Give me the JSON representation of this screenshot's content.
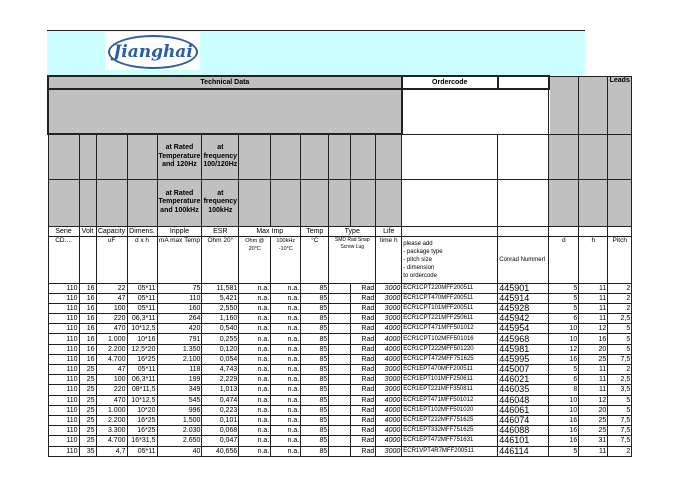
{
  "logo": {
    "text": "Jianghai",
    "color": "#2a5fa8"
  },
  "header": {
    "technical_data": "Technical Data",
    "ordercode": "Ordercode",
    "leads": "Leads",
    "ripple_note_1": "at Rated Temperature and 120Hz",
    "esr_note_1": "at frequency 100/120Hz",
    "ripple_note_2": "at Rated Temperature and 100kHz",
    "esr_note_2": "at frequency 100kHz"
  },
  "columns": {
    "serie": "Serie",
    "volt": "Volt",
    "capacity": "Capacity",
    "dimens": "Dimens.",
    "iripple": "Iripple",
    "esr": "ESR",
    "max_imp": "Max Imp",
    "temp": "Temp",
    "type": "Type",
    "life": "Life"
  },
  "units": {
    "serie": "CD....",
    "capacity": "uF",
    "dimens": "d x h",
    "iripple": "mA max Temp",
    "esr": "Ohm 20°",
    "imp1": "Ohm @ 20°C",
    "imp2": "100kHz -10°C",
    "temp": "°C",
    "type": "SMD Rad Snap Screw Lug",
    "life": "time h",
    "ordercode_note": "please add\n- package type\n- pitch size\n- dimension\nto ordercode",
    "conrad": "Conrad Nummerl",
    "d": "d",
    "h": "h",
    "pitch": "Pitch"
  },
  "rows": [
    [
      "110",
      "16",
      "22",
      "05*11",
      "75",
      "11,581",
      "n.a.",
      "n.a.",
      "85",
      "Rad",
      "3000",
      "ECR1CPT220MFF200511",
      "445901",
      "5",
      "11",
      "2"
    ],
    [
      "110",
      "16",
      "47",
      "05*11",
      "110",
      "5,421",
      "n.a.",
      "n.a.",
      "85",
      "Rad",
      "3000",
      "ECR1CPT470MFF200511",
      "445914",
      "5",
      "11",
      "2"
    ],
    [
      "110",
      "16",
      "100",
      "05*11",
      "160",
      "2,550",
      "n.a.",
      "n.a.",
      "85",
      "Rad",
      "3000",
      "ECR1CPT101MFF200511",
      "445928",
      "5",
      "11",
      "2"
    ],
    [
      "110",
      "16",
      "220",
      "06,3*11",
      "264",
      "1,160",
      "n.a.",
      "n.a.",
      "85",
      "Rad",
      "3000",
      "ECR1CPT221MFF250611",
      "445942",
      "6",
      "11",
      "2,5"
    ],
    [
      "110",
      "16",
      "470",
      "10*12,5",
      "420",
      "0,540",
      "n.a.",
      "n.a.",
      "85",
      "Rad",
      "4000",
      "ECR1CPT471MFF501012",
      "445954",
      "10",
      "12",
      "5"
    ],
    [
      "110",
      "16",
      "1.000",
      "10*16",
      "791",
      "0,255",
      "n.a.",
      "n.a.",
      "85",
      "Rad",
      "4000",
      "ECR1CPT102MFF501016",
      "445968",
      "10",
      "16",
      "5"
    ],
    [
      "110",
      "16",
      "2.200",
      "12,5*20",
      "1.350",
      "0,120",
      "n.a.",
      "n.a.",
      "85",
      "Rad",
      "4000",
      "ECR1CPT222MFF501220",
      "445981",
      "12",
      "20",
      "5"
    ],
    [
      "110",
      "16",
      "4.700",
      "16*25",
      "2.100",
      "0,054",
      "n.a.",
      "n.a.",
      "85",
      "Rad",
      "4000",
      "ECR1CPT472MFF751625",
      "445995",
      "16",
      "25",
      "7,5"
    ],
    [
      "110",
      "25",
      "47",
      "05*11",
      "118",
      "4,743",
      "n.a.",
      "n.a.",
      "85",
      "Rad",
      "3000",
      "ECR1EPT470MFF200511",
      "445007",
      "5",
      "11",
      "2"
    ],
    [
      "110",
      "25",
      "100",
      "06,3*11",
      "199",
      "2,229",
      "n.a.",
      "n.a.",
      "85",
      "Rad",
      "3000",
      "ECR1EPT101MFF250611",
      "446021",
      "6",
      "11",
      "2,5"
    ],
    [
      "110",
      "25",
      "220",
      "08*11,5",
      "349",
      "1,013",
      "n.a.",
      "n.a.",
      "85",
      "Rad",
      "3000",
      "ECR1EPT221MFF350811",
      "446035",
      "8",
      "11",
      "3,5"
    ],
    [
      "110",
      "25",
      "470",
      "10*12,5",
      "545",
      "0,474",
      "n.a.",
      "n.a.",
      "85",
      "Rad",
      "4000",
      "ECR1EPT471MFF501012",
      "446048",
      "10",
      "12",
      "5"
    ],
    [
      "110",
      "25",
      "1.000",
      "10*20",
      "996",
      "0,223",
      "n.a.",
      "n.a.",
      "85",
      "Rad",
      "4000",
      "ECR1EPT102MFF501020",
      "446061",
      "10",
      "20",
      "5"
    ],
    [
      "110",
      "25",
      "2.200",
      "16*25",
      "1.500",
      "0,101",
      "n.a.",
      "n.a.",
      "85",
      "Rad",
      "4000",
      "ECR1EPT222MFF751625",
      "446074",
      "16",
      "25",
      "7,5"
    ],
    [
      "110",
      "25",
      "3.300",
      "16*25",
      "2.030",
      "0,068",
      "n.a.",
      "n.a.",
      "85",
      "Rad",
      "4000",
      "ECR1EPT332MFF751625",
      "446088",
      "16",
      "25",
      "7,5"
    ],
    [
      "110",
      "25",
      "4.700",
      "16*31,5",
      "2.650",
      "0,047",
      "n.a.",
      "n.a.",
      "85",
      "Rad",
      "4000",
      "ECR1EPT472MFF751631",
      "446101",
      "16",
      "31",
      "7,5"
    ],
    [
      "110",
      "35",
      "4,7",
      "05*11",
      "40",
      "40,656",
      "n.a.",
      "n.a.",
      "85",
      "Rad",
      "3000",
      "ECR1VPT4R7MFF200511",
      "446114",
      "5",
      "11",
      "2"
    ]
  ]
}
